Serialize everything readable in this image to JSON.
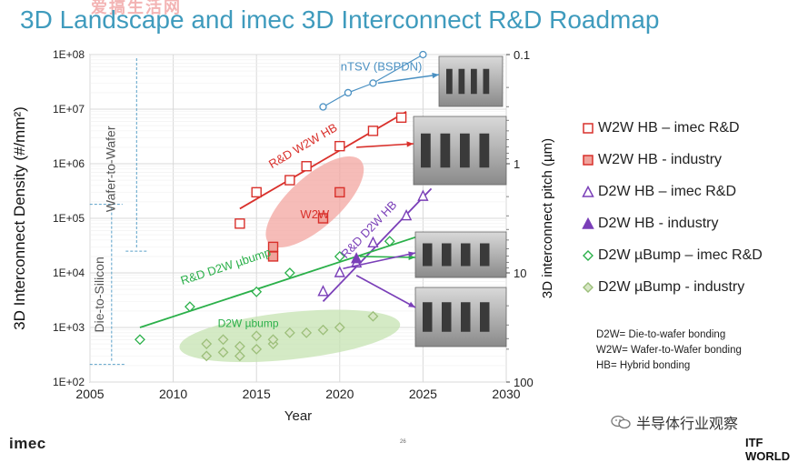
{
  "watermark": "爱搞生活网",
  "slide": {
    "title": "3D Landscape and imec 3D Interconnect R&D Roadmap",
    "page_number": "26",
    "logo_text": "imec",
    "footer_logo": "ITF WORLD",
    "wechat_source": "半导体行业观察"
  },
  "legend": [
    {
      "label": "W2W HB – imec R&D",
      "marker": "square-open",
      "color": "#d9302b"
    },
    {
      "label": "W2W HB - industry",
      "marker": "square-filled",
      "color": "#d9302b"
    },
    {
      "label": "D2W HB – imec R&D",
      "marker": "triangle-open",
      "color": "#7a3fb8"
    },
    {
      "label": "D2W HB - industry",
      "marker": "triangle-filled",
      "color": "#7a3fb8"
    },
    {
      "label": "D2W µBump – imec R&D",
      "marker": "diamond-open",
      "color": "#2bb04a"
    },
    {
      "label": "D2W µBump - industry",
      "marker": "diamond-filled",
      "color": "#9cbf7a"
    }
  ],
  "notes": [
    "D2W= Die-to-wafer bonding",
    "W2W= Wafer-to-Wafer bonding",
    "HB= Hybrid bonding"
  ],
  "chart_data": {
    "type": "scatter",
    "xlabel": "Year",
    "ylabel": "3D Interconnect Density (#/mm²)",
    "y2label": "3D interconnect pitch (µm)",
    "xlim": [
      2005,
      2030
    ],
    "ylim": [
      100,
      100000000
    ],
    "yscale": "log",
    "x_ticks": [
      "2005",
      "2010",
      "2015",
      "2020",
      "2025",
      "2030"
    ],
    "y_ticks": [
      "1E+02",
      "1E+03",
      "1E+04",
      "1E+05",
      "1E+06",
      "1E+07",
      "1E+08"
    ],
    "y2_ticks": [
      "0.1",
      "1",
      "10",
      "100"
    ],
    "grid": true,
    "series": [
      {
        "name": "W2W HB – imec R&D",
        "marker": "square-open",
        "color": "#d9302b",
        "points": [
          [
            2014,
            80000
          ],
          [
            2015,
            300000
          ],
          [
            2017,
            500000
          ],
          [
            2018,
            900000
          ],
          [
            2020,
            2100000
          ],
          [
            2022,
            4000000
          ],
          [
            2023.7,
            7000000
          ]
        ]
      },
      {
        "name": "W2W HB - industry",
        "marker": "square-filled",
        "color": "#d9302b",
        "points": [
          [
            2016,
            30000
          ],
          [
            2016,
            20000
          ],
          [
            2019,
            100000
          ],
          [
            2020,
            300000
          ]
        ]
      },
      {
        "name": "D2W HB – imec R&D",
        "marker": "triangle-open",
        "color": "#7a3fb8",
        "points": [
          [
            2019,
            4500
          ],
          [
            2020,
            10000
          ],
          [
            2021,
            15000
          ],
          [
            2022,
            35000
          ],
          [
            2024,
            110000
          ],
          [
            2025,
            250000
          ]
        ]
      },
      {
        "name": "D2W HB - industry",
        "marker": "triangle-filled",
        "color": "#7a3fb8",
        "points": [
          [
            2021,
            18000
          ]
        ]
      },
      {
        "name": "D2W µBump – imec R&D",
        "marker": "diamond-open",
        "color": "#2bb04a",
        "points": [
          [
            2008,
            600
          ],
          [
            2011,
            2400
          ],
          [
            2015,
            4500
          ],
          [
            2017,
            10000
          ],
          [
            2020,
            20000
          ],
          [
            2023,
            38000
          ]
        ]
      },
      {
        "name": "D2W µBump - industry",
        "marker": "diamond-filled",
        "color": "#9cbf7a",
        "points": [
          [
            2012,
            300
          ],
          [
            2012,
            500
          ],
          [
            2013,
            350
          ],
          [
            2013,
            600
          ],
          [
            2014,
            450
          ],
          [
            2014,
            300
          ],
          [
            2015,
            400
          ],
          [
            2015,
            700
          ],
          [
            2016,
            500
          ],
          [
            2016,
            600
          ],
          [
            2017,
            800
          ],
          [
            2018,
            800
          ],
          [
            2019,
            900
          ],
          [
            2020,
            1000
          ],
          [
            2022,
            1600
          ]
        ]
      },
      {
        "name": "nTSV (BSPDN)",
        "marker": "circle-open",
        "color": "#4a90c2",
        "points": [
          [
            2019,
            11000000
          ],
          [
            2020.5,
            20000000
          ],
          [
            2022,
            30000000
          ],
          [
            2025,
            100000000
          ]
        ]
      }
    ],
    "trend_lines": [
      {
        "label": "R&D W2W HB",
        "color": "#d9302b",
        "from": [
          2014,
          150000
        ],
        "to": [
          2024,
          9000000
        ]
      },
      {
        "label": "R&D D2W HB",
        "color": "#7a3fb8",
        "from": [
          2019,
          3000
        ],
        "to": [
          2025.5,
          350000
        ]
      },
      {
        "label": "R&D D2W µbump",
        "color": "#2bb04a",
        "from": [
          2008,
          1000
        ],
        "to": [
          2025,
          50000
        ]
      }
    ],
    "regions": [
      {
        "label": "W2W",
        "color": "#f3a6a0"
      },
      {
        "label": "D2W µbump",
        "color": "#c5e3b1"
      }
    ],
    "annotations": [
      {
        "label": "nTSV (BSPDN)",
        "color": "#4a90c2"
      },
      {
        "label": "Wafer-to-Wafer",
        "color": "#555555"
      },
      {
        "label": "Die-to-Silicon",
        "color": "#555555"
      }
    ]
  }
}
